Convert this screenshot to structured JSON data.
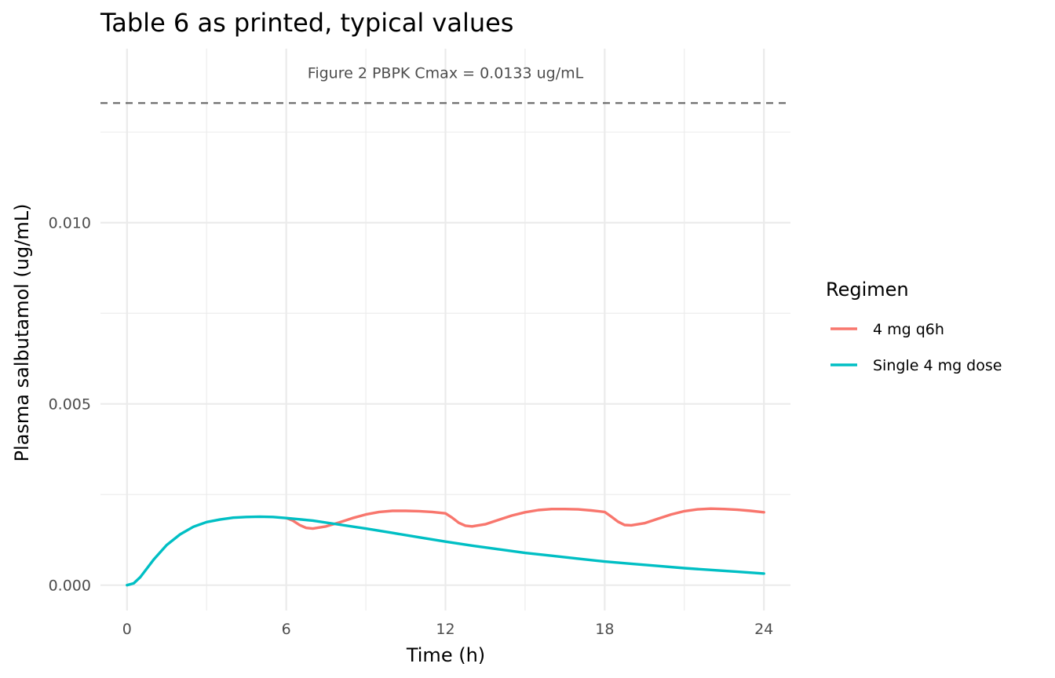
{
  "chart_data": {
    "type": "line",
    "title": "Table 6 as printed, typical values",
    "xlabel": "Time (h)",
    "ylabel": "Plasma salbutamol (ug/mL)",
    "xlim": [
      -1,
      25
    ],
    "ylim": [
      -0.0007,
      0.0148
    ],
    "x_ticks": [
      0,
      6,
      12,
      18,
      24
    ],
    "x_tick_labels": [
      "0",
      "6",
      "12",
      "18",
      "24"
    ],
    "y_ticks": [
      0.0,
      0.005,
      0.01
    ],
    "y_tick_labels": [
      "0.000",
      "0.005",
      "0.010"
    ],
    "grid": true,
    "legend": {
      "title": "Regimen",
      "position": "right"
    },
    "reference_line": {
      "y": 0.0133,
      "style": "dashed",
      "label": "Figure 2 PBPK Cmax = 0.0133 ug/mL"
    },
    "series": [
      {
        "name": "4 mg q6h",
        "color": "#F8766D",
        "x": [
          6,
          6.25,
          6.5,
          6.75,
          7,
          7.5,
          8,
          8.5,
          9,
          9.5,
          10,
          10.5,
          11,
          11.5,
          12,
          12.25,
          12.5,
          12.75,
          13,
          13.5,
          14,
          14.5,
          15,
          15.5,
          16,
          16.5,
          17,
          17.5,
          18,
          18.25,
          18.5,
          18.75,
          19,
          19.5,
          20,
          20.5,
          21,
          21.5,
          22,
          22.5,
          23,
          23.5,
          24
        ],
        "y": [
          0.00185,
          0.00178,
          0.00166,
          0.00158,
          0.00156,
          0.00162,
          0.00173,
          0.00185,
          0.00195,
          0.00202,
          0.00205,
          0.00205,
          0.00204,
          0.00202,
          0.00198,
          0.00186,
          0.00172,
          0.00164,
          0.00162,
          0.00168,
          0.0018,
          0.00192,
          0.00201,
          0.00207,
          0.0021,
          0.0021,
          0.00209,
          0.00206,
          0.00202,
          0.00189,
          0.00175,
          0.00166,
          0.00165,
          0.00171,
          0.00183,
          0.00195,
          0.00204,
          0.00209,
          0.00211,
          0.0021,
          0.00208,
          0.00205,
          0.00201
        ]
      },
      {
        "name": "Single 4 mg dose",
        "color": "#00BFC4",
        "x": [
          0,
          0.25,
          0.5,
          0.75,
          1,
          1.5,
          2,
          2.5,
          3,
          3.5,
          4,
          4.5,
          5,
          5.5,
          6,
          7,
          8,
          9,
          10,
          11,
          12,
          13,
          14,
          15,
          16,
          17,
          18,
          19,
          20,
          21,
          22,
          23,
          24
        ],
        "y": [
          0.0,
          5e-05,
          0.00022,
          0.00046,
          0.0007,
          0.00111,
          0.0014,
          0.00161,
          0.00174,
          0.00181,
          0.00186,
          0.00188,
          0.00189,
          0.00188,
          0.00185,
          0.00178,
          0.00167,
          0.00156,
          0.00144,
          0.00132,
          0.0012,
          0.00109,
          0.00099,
          0.00089,
          0.00081,
          0.00073,
          0.00065,
          0.00059,
          0.00053,
          0.00047,
          0.00042,
          0.00037,
          0.00032
        ]
      }
    ]
  }
}
